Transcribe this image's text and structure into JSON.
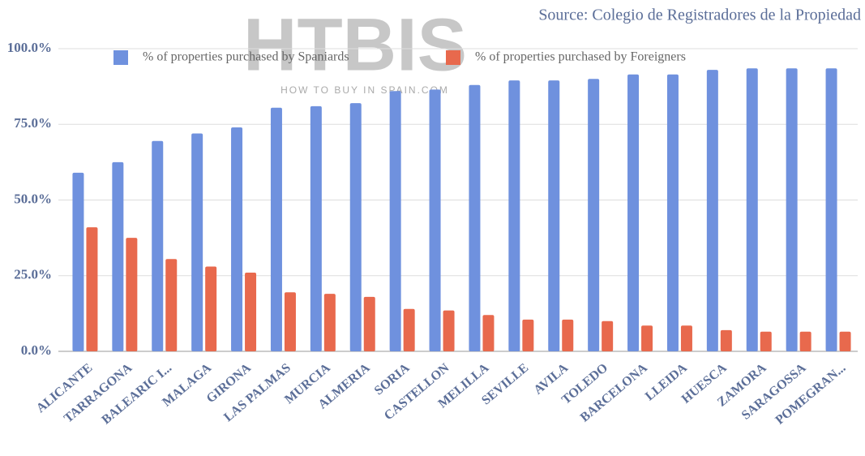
{
  "chart_data": {
    "type": "bar",
    "source": "Source: Colegio de Registradores de la Propiedad",
    "watermark": "HTBIS",
    "watermark_subtitle": "HOW TO BUY IN SPAIN.COM",
    "categories": [
      "ALICANTE",
      "TARRAGONA",
      "BALEARIC I...",
      "MALAGA",
      "GIRONA",
      "LAS PALMAS",
      "MURCIA",
      "ALMERIA",
      "SORIA",
      "CASTELLON",
      "MELILLA",
      "SEVILLE",
      "AVILA",
      "TOLEDO",
      "BARCELONA",
      "LLEIDA",
      "HUESCA",
      "ZAMORA",
      "SARAGOSSA",
      "POMEGRAN..."
    ],
    "series": [
      {
        "name": "% of properties purchased by Spaniards",
        "color": "#6f91de",
        "values": [
          59,
          62.5,
          69.5,
          72,
          74,
          80.5,
          81,
          82,
          86,
          86.5,
          88,
          89.5,
          89.5,
          90,
          91.5,
          91.5,
          93,
          93.5,
          93.5,
          93.5
        ]
      },
      {
        "name": "% of properties purchased by Foreigners",
        "color": "#e8694d",
        "values": [
          41,
          37.5,
          30.5,
          28,
          26,
          19.5,
          19,
          18,
          14,
          13.5,
          12,
          10.5,
          10.5,
          10,
          8.5,
          8.5,
          7,
          6.5,
          6.5,
          6.5
        ]
      }
    ],
    "ylim": [
      0,
      100
    ],
    "yticks": [
      {
        "value": 0,
        "label": "0.0%"
      },
      {
        "value": 25,
        "label": "25.0%"
      },
      {
        "value": 50,
        "label": "50.0%"
      },
      {
        "value": 75,
        "label": "75.0%"
      },
      {
        "value": 100,
        "label": "100.0%"
      }
    ],
    "grid": true,
    "legend": "top"
  }
}
